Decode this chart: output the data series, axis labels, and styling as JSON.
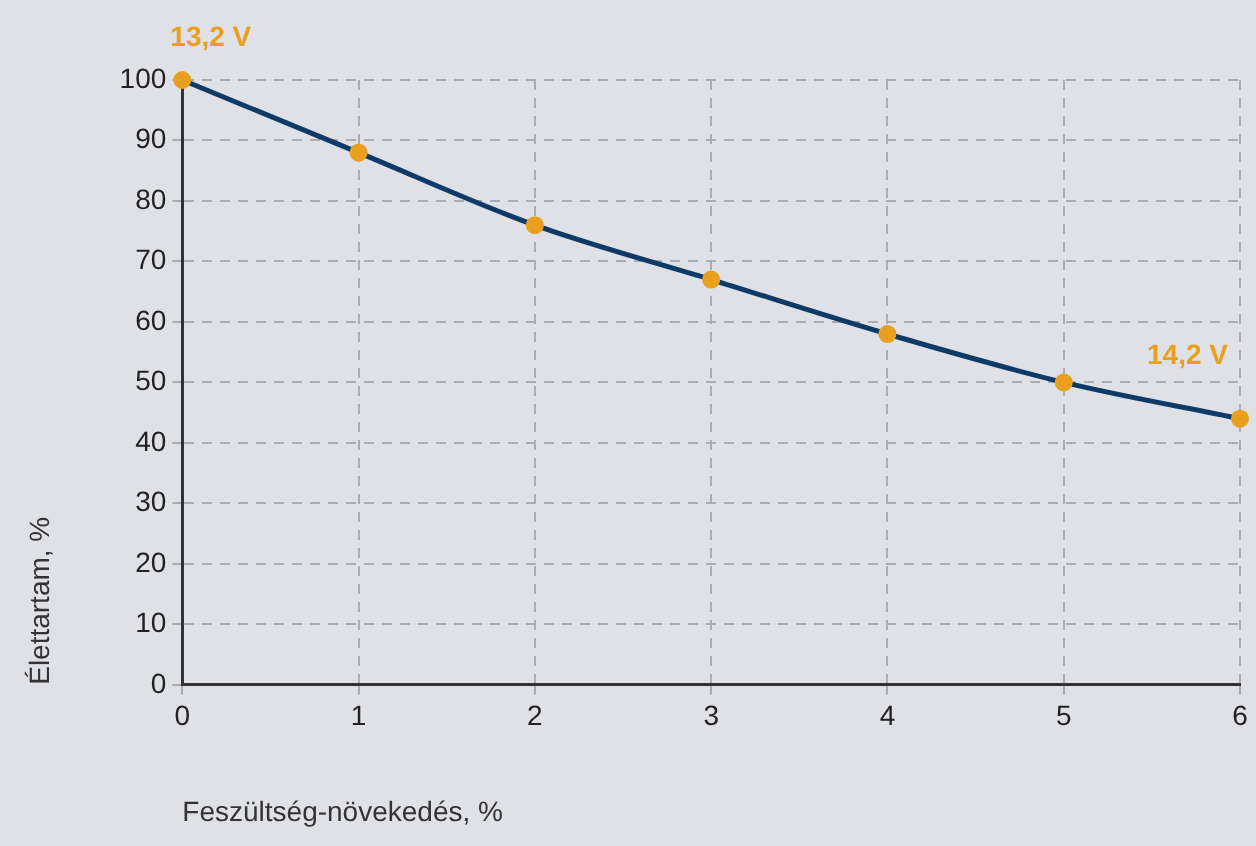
{
  "chart_data": {
    "type": "line",
    "xlabel": "Feszültség-növekedés, %",
    "ylabel": "Élettartam, %",
    "x": [
      0,
      1,
      2,
      3,
      4,
      5,
      6
    ],
    "series": [
      {
        "type": "line",
        "color": "#0e3a68",
        "marker": "none",
        "values": [
          100,
          88,
          76,
          67,
          58,
          50,
          44
        ]
      },
      {
        "type": "scatter",
        "color": "#e8a01e",
        "marker": "circle",
        "values": [
          100,
          88,
          76,
          67,
          58,
          50,
          44
        ]
      }
    ],
    "xlim": [
      0,
      6
    ],
    "xticks": [
      0,
      1,
      2,
      3,
      4,
      5,
      6
    ],
    "ylim": [
      0,
      100
    ],
    "yticks": [
      0,
      10,
      20,
      30,
      40,
      50,
      60,
      70,
      80,
      90,
      100
    ],
    "grid": true,
    "legend": false,
    "line_style": "solid",
    "annotations": [
      {
        "text": "13,2 V",
        "x": 0,
        "y": 100
      },
      {
        "text": "14,2 V",
        "x": 6,
        "y": 44
      }
    ]
  }
}
